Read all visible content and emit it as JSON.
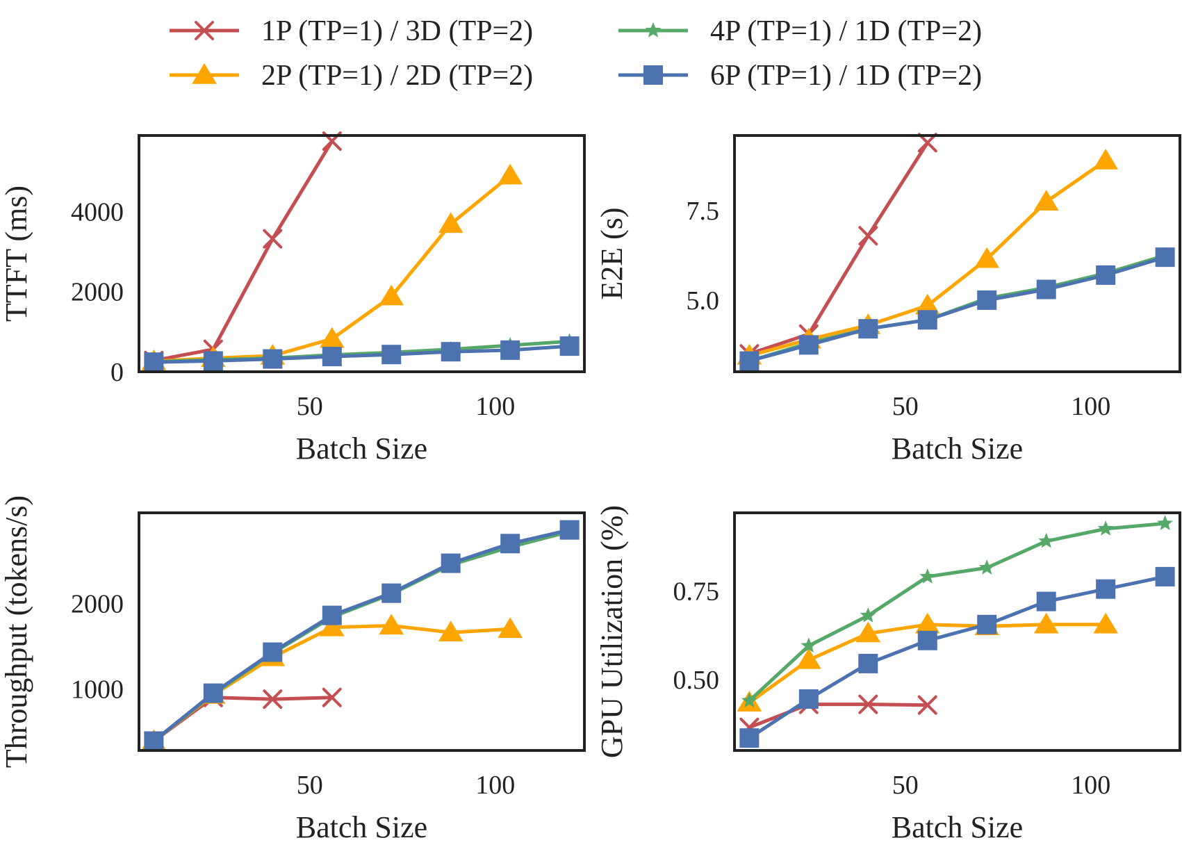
{
  "series_styles": [
    {
      "key": "s1",
      "name": "1P (TP=1) / 3D (TP=2)",
      "color": "#c44e52",
      "marker": "x"
    },
    {
      "key": "s2",
      "name": "2P (TP=1) / 2D (TP=2)",
      "color": "#ffa500",
      "marker": "triangle"
    },
    {
      "key": "s3",
      "name": "4P (TP=1) / 1D (TP=2)",
      "color": "#55a868",
      "marker": "star"
    },
    {
      "key": "s4",
      "name": "6P (TP=1) / 1D (TP=2)",
      "color": "#4c72b0",
      "marker": "square"
    }
  ],
  "chart_data": [
    {
      "type": "line",
      "panel": "top-left",
      "xlabel": "Batch Size",
      "ylabel": "TTFT (ms)",
      "xlim": [
        4,
        124
      ],
      "ylim": [
        0,
        5900
      ],
      "xticks": [
        50,
        100
      ],
      "yticks": [
        0,
        2000,
        4000
      ],
      "ytick_labels": [
        "0",
        "2000",
        "4000"
      ],
      "series": [
        {
          "name": "1P (TP=1) / 3D (TP=2)",
          "x": [
            8,
            24,
            40,
            56
          ],
          "values": [
            280,
            560,
            3320,
            5760
          ]
        },
        {
          "name": "2P (TP=1) / 2D (TP=2)",
          "x": [
            8,
            24,
            40,
            56,
            72,
            88,
            104
          ],
          "values": [
            260,
            340,
            400,
            820,
            1880,
            3690,
            4900
          ]
        },
        {
          "name": "4P (TP=1) / 1D (TP=2)",
          "x": [
            8,
            24,
            40,
            56,
            72,
            88,
            104,
            120
          ],
          "values": [
            250,
            300,
            340,
            420,
            480,
            560,
            660,
            760
          ]
        },
        {
          "name": "6P (TP=1) / 1D (TP=2)",
          "x": [
            8,
            24,
            40,
            56,
            72,
            88,
            104,
            120
          ],
          "values": [
            240,
            270,
            320,
            380,
            430,
            500,
            540,
            640
          ]
        }
      ]
    },
    {
      "type": "line",
      "panel": "top-right",
      "xlabel": "Batch Size",
      "ylabel": "E2E (s)",
      "xlim": [
        4,
        124
      ],
      "ylim": [
        3.0,
        9.6
      ],
      "xticks": [
        50,
        100
      ],
      "yticks": [
        5.0,
        7.5
      ],
      "ytick_labels": [
        "5.0",
        "7.5"
      ],
      "series": [
        {
          "name": "1P (TP=1) / 3D (TP=2)",
          "x": [
            8,
            24,
            40,
            56
          ],
          "values": [
            3.5,
            4.05,
            6.8,
            9.4
          ]
        },
        {
          "name": "2P (TP=1) / 2D (TP=2)",
          "x": [
            8,
            24,
            40,
            56,
            72,
            88,
            104
          ],
          "values": [
            3.45,
            3.9,
            4.3,
            4.85,
            6.15,
            7.75,
            8.9
          ]
        },
        {
          "name": "4P (TP=1) / 1D (TP=2)",
          "x": [
            8,
            24,
            40,
            56,
            72,
            88,
            104,
            120
          ],
          "values": [
            3.3,
            3.8,
            4.2,
            4.45,
            5.05,
            5.35,
            5.75,
            6.25
          ]
        },
        {
          "name": "6P (TP=1) / 1D (TP=2)",
          "x": [
            8,
            24,
            40,
            56,
            72,
            88,
            104,
            120
          ],
          "values": [
            3.3,
            3.75,
            4.2,
            4.45,
            5.0,
            5.3,
            5.7,
            6.2
          ]
        }
      ]
    },
    {
      "type": "line",
      "panel": "bottom-left",
      "xlabel": "Batch Size",
      "ylabel": "Throughput (tokens/s)",
      "xlim": [
        4,
        124
      ],
      "ylim": [
        280,
        3060
      ],
      "xticks": [
        50,
        100
      ],
      "yticks": [
        1000,
        2000
      ],
      "ytick_labels": [
        "1000",
        "2000"
      ],
      "series": [
        {
          "name": "1P (TP=1) / 3D (TP=2)",
          "x": [
            8,
            24,
            40,
            56
          ],
          "values": [
            390,
            900,
            880,
            900
          ]
        },
        {
          "name": "2P (TP=1) / 2D (TP=2)",
          "x": [
            8,
            24,
            40,
            56,
            72,
            88,
            104
          ],
          "values": [
            390,
            930,
            1370,
            1720,
            1740,
            1660,
            1700
          ]
        },
        {
          "name": "4P (TP=1) / 1D (TP=2)",
          "x": [
            8,
            24,
            40,
            56,
            72,
            88,
            104,
            120
          ],
          "values": [
            390,
            940,
            1420,
            1840,
            2110,
            2450,
            2660,
            2840
          ]
        },
        {
          "name": "6P (TP=1) / 1D (TP=2)",
          "x": [
            8,
            24,
            40,
            56,
            72,
            88,
            104,
            120
          ],
          "values": [
            390,
            950,
            1430,
            1860,
            2120,
            2470,
            2700,
            2860
          ]
        }
      ]
    },
    {
      "type": "line",
      "panel": "bottom-right",
      "xlabel": "Batch Size",
      "ylabel": "GPU Utilization (%)",
      "xlim": [
        4,
        124
      ],
      "ylim": [
        0.3,
        0.97
      ],
      "xticks": [
        50,
        100
      ],
      "yticks": [
        0.5,
        0.75
      ],
      "ytick_labels": [
        "0.50",
        "0.75"
      ],
      "series": [
        {
          "name": "1P (TP=1) / 3D (TP=2)",
          "x": [
            8,
            24,
            40,
            56
          ],
          "values": [
            0.365,
            0.43,
            0.43,
            0.428
          ]
        },
        {
          "name": "2P (TP=1) / 2D (TP=2)",
          "x": [
            8,
            24,
            40,
            56,
            72,
            88,
            104
          ],
          "values": [
            0.435,
            0.555,
            0.63,
            0.655,
            0.65,
            0.655,
            0.655
          ]
        },
        {
          "name": "4P (TP=1) / 1D (TP=2)",
          "x": [
            8,
            24,
            40,
            56,
            72,
            88,
            104,
            120
          ],
          "values": [
            0.44,
            0.595,
            0.68,
            0.79,
            0.815,
            0.89,
            0.925,
            0.94
          ]
        },
        {
          "name": "6P (TP=1) / 1D (TP=2)",
          "x": [
            8,
            24,
            40,
            56,
            72,
            88,
            104,
            120
          ],
          "values": [
            0.335,
            0.445,
            0.545,
            0.61,
            0.655,
            0.72,
            0.755,
            0.79
          ]
        }
      ]
    }
  ]
}
